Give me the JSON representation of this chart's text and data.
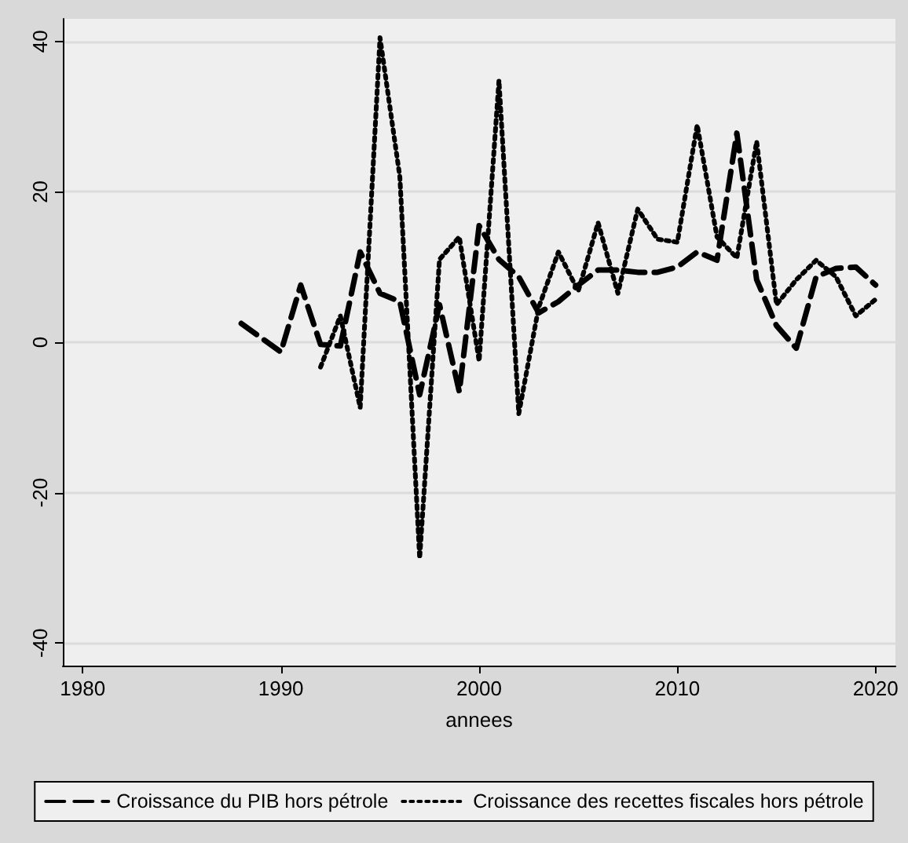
{
  "chart_data": {
    "type": "line",
    "xlabel": "annees",
    "x": [
      1988,
      1989,
      1990,
      1991,
      1992,
      1993,
      1994,
      1995,
      1996,
      1997,
      1998,
      1999,
      2000,
      2001,
      2002,
      2003,
      2004,
      2005,
      2006,
      2007,
      2008,
      2009,
      2010,
      2011,
      2012,
      2013,
      2014,
      2015,
      2016,
      2017,
      2018,
      2019,
      2020
    ],
    "series": [
      {
        "name": "Croissance du PIB hors pétrole",
        "color": "#000000",
        "line_style": "dashed",
        "values": [
          2.5,
          0.6,
          -1.3,
          7.6,
          -0.3,
          -0.5,
          12,
          6.5,
          5.4,
          -7,
          5,
          -6.6,
          15.5,
          11,
          8.7,
          3.9,
          5.4,
          7.6,
          9.6,
          9.6,
          9.3,
          9.3,
          10,
          12,
          10.9,
          27.8,
          8.3,
          2.2,
          -0.8,
          8.7,
          9.8,
          10,
          7.6
        ]
      },
      {
        "name": "Croissance des recettes fiscales hors pétrole",
        "color": "#000000",
        "line_style": "dotted",
        "values": [
          null,
          null,
          null,
          null,
          -3.3,
          3.5,
          -8.7,
          40.5,
          22,
          -28.7,
          11,
          14,
          -2.5,
          34.8,
          -9.5,
          4.6,
          12,
          6.8,
          15.9,
          6.5,
          17.7,
          13.7,
          13.3,
          28.9,
          14,
          11.2,
          26.7,
          5,
          8.3,
          10.9,
          8.7,
          3.5,
          5.7
        ]
      }
    ],
    "xlim": [
      1979,
      2021
    ],
    "xticks": [
      1980,
      1990,
      2000,
      2010,
      2020
    ],
    "ylim": [
      -43,
      43
    ],
    "yticks": [
      -40,
      -20,
      0,
      20,
      40
    ],
    "grid": "y",
    "legend": "bottom",
    "marker": "none"
  }
}
